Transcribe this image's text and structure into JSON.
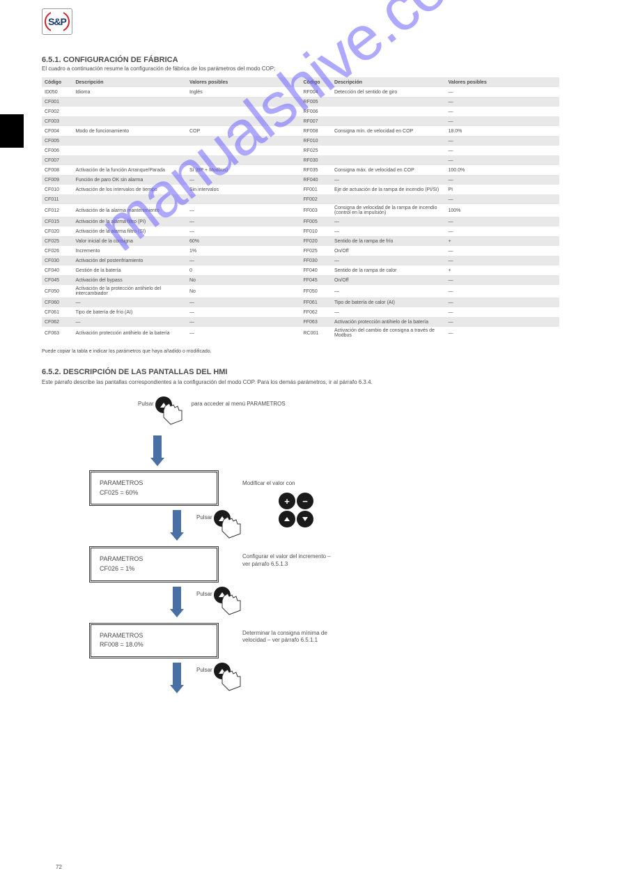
{
  "logo": {
    "text": "S&P"
  },
  "page_number": "72",
  "section": {
    "title": "6.5.1. CONFIGURACIÓN DE FÁBRICA",
    "sub": "El cuadro a continuación resume la configuración de fábrica de los parámetros del modo COP:"
  },
  "table1": {
    "headers": [
      "Código",
      "Descripción",
      "Valores posibles",
      "Código",
      "Descripción",
      "Valores posibles"
    ],
    "rows": [
      [
        "ID050",
        "Idioma",
        "Inglés",
        "RF004",
        "Detección del sentido de giro",
        "—"
      ],
      [
        "CF001",
        "",
        "",
        "RF005",
        "",
        "—"
      ],
      [
        "CF002",
        "",
        "",
        "RF006",
        "",
        "—"
      ],
      [
        "CF003",
        "",
        "",
        "RF007",
        "",
        "—"
      ],
      [
        "CF004",
        "Modo de funcionamiento",
        "COP",
        "RF008",
        "Consigna mín. de velocidad en COP",
        "18.0%"
      ],
      [
        "CF005",
        "",
        "",
        "RF010",
        "",
        "—"
      ],
      [
        "CF006",
        "",
        "",
        "RF025",
        "",
        "—"
      ],
      [
        "CF007",
        "",
        "",
        "RF030",
        "",
        "—"
      ],
      [
        "CF008",
        "Activación de la función Arranque/Parada",
        "Sí (BP + Modbus)",
        "RF035",
        "Consigna máx. de velocidad en COP",
        "100.0%"
      ],
      [
        "CF009",
        "Función de paro OK sin alarma",
        "—",
        "RF040",
        "—",
        "—"
      ],
      [
        "CF010",
        "Activación de los intervalos de tiempo",
        "Sin intervalos",
        "FF001",
        "Eje de actuación de la rampa de incendio (PI/SI)",
        "PI"
      ],
      [
        "CF011",
        "",
        "",
        "FF002",
        "",
        "—"
      ],
      [
        "CF012",
        "Activación de la alarma mantenimiento",
        "—",
        "FF003",
        "Consigna de velocidad de la rampa de incendio (control en la impulsión)",
        "100%"
      ],
      [
        "CF015",
        "Activación de la alarma filtro (PI)",
        "—",
        "FF005",
        "—",
        "—"
      ],
      [
        "CF020",
        "Activación de la alarma filtro (SI)",
        "—",
        "FF010",
        "—",
        "—"
      ],
      [
        "CF025",
        "Valor inicial de la consigna",
        "60%",
        "FF020",
        "Sentido de la rampa de frío",
        "+"
      ],
      [
        "CF026",
        "Incremento",
        "1%",
        "FF025",
        "On/Off",
        "—"
      ],
      [
        "CF030",
        "Activación del postenfriamiento",
        "—",
        "FF030",
        "—",
        "—"
      ],
      [
        "CF040",
        "Gestión de la batería",
        "0",
        "FF040",
        "Sentido de la rampa de calor",
        "+"
      ],
      [
        "CF045",
        "Activación del bypass",
        "No",
        "FF045",
        "On/Off",
        "—"
      ],
      [
        "CF050",
        "Activación de la protección antihielo del intercambiador",
        "No",
        "FF050",
        "—",
        "—"
      ],
      [
        "CF060",
        "—",
        "—",
        "FF061",
        "Tipo de batería de calor (AI)",
        "—"
      ],
      [
        "CF061",
        "Tipo de batería de frío (AI)",
        "—",
        "FF062",
        "—",
        "—"
      ],
      [
        "CF062",
        "—",
        "—",
        "FF063",
        "Activación protección antihielo de la batería",
        "—"
      ],
      [
        "CF063",
        "Activación protección antihielo de la batería",
        "—",
        "RC001",
        "Activación del cambio de consigna a través de Modbus",
        "—"
      ]
    ]
  },
  "copy_note": "Puede copiar la tabla e indicar los parámetros que haya añadido o modificado.",
  "hmi": {
    "title": "6.5.2. DESCRIPCIÓN DE LAS PANTALLAS DEL HMI",
    "sub": "Este párrafo describe las pantallas correspondientes a la configuración del modo COP. Para los demás parámetros, ir al párrafo 6.3.4."
  },
  "flow": {
    "press_parametros": "Pulsar        para acceder al menú PARAMETROS",
    "screen1_l1": "PARAMETROS",
    "screen1_l2": "CF025 = 60%",
    "side1": "Modificar el valor con",
    "press_enter": "Pulsar",
    "screen2_l1": "PARAMETROS",
    "screen2_l2": "CF026 = 1%",
    "side2_l1": "Configurar el valor del incremento –",
    "side2_l2": "ver párrafo 6.5.1.3",
    "screen3_l1": "PARAMETROS",
    "screen3_l2": "RF008 = 18.0%",
    "side3_l1": "Determinar la consigna mínima de",
    "side3_l2": "velocidad – ver párrafo 6.5.1.1"
  },
  "colors": {
    "arrow": "#4a6fa5",
    "watermark": "rgba(108,99,255,0.55)",
    "alt_row": "#e8e8e9",
    "text": "#4a4a4a"
  }
}
